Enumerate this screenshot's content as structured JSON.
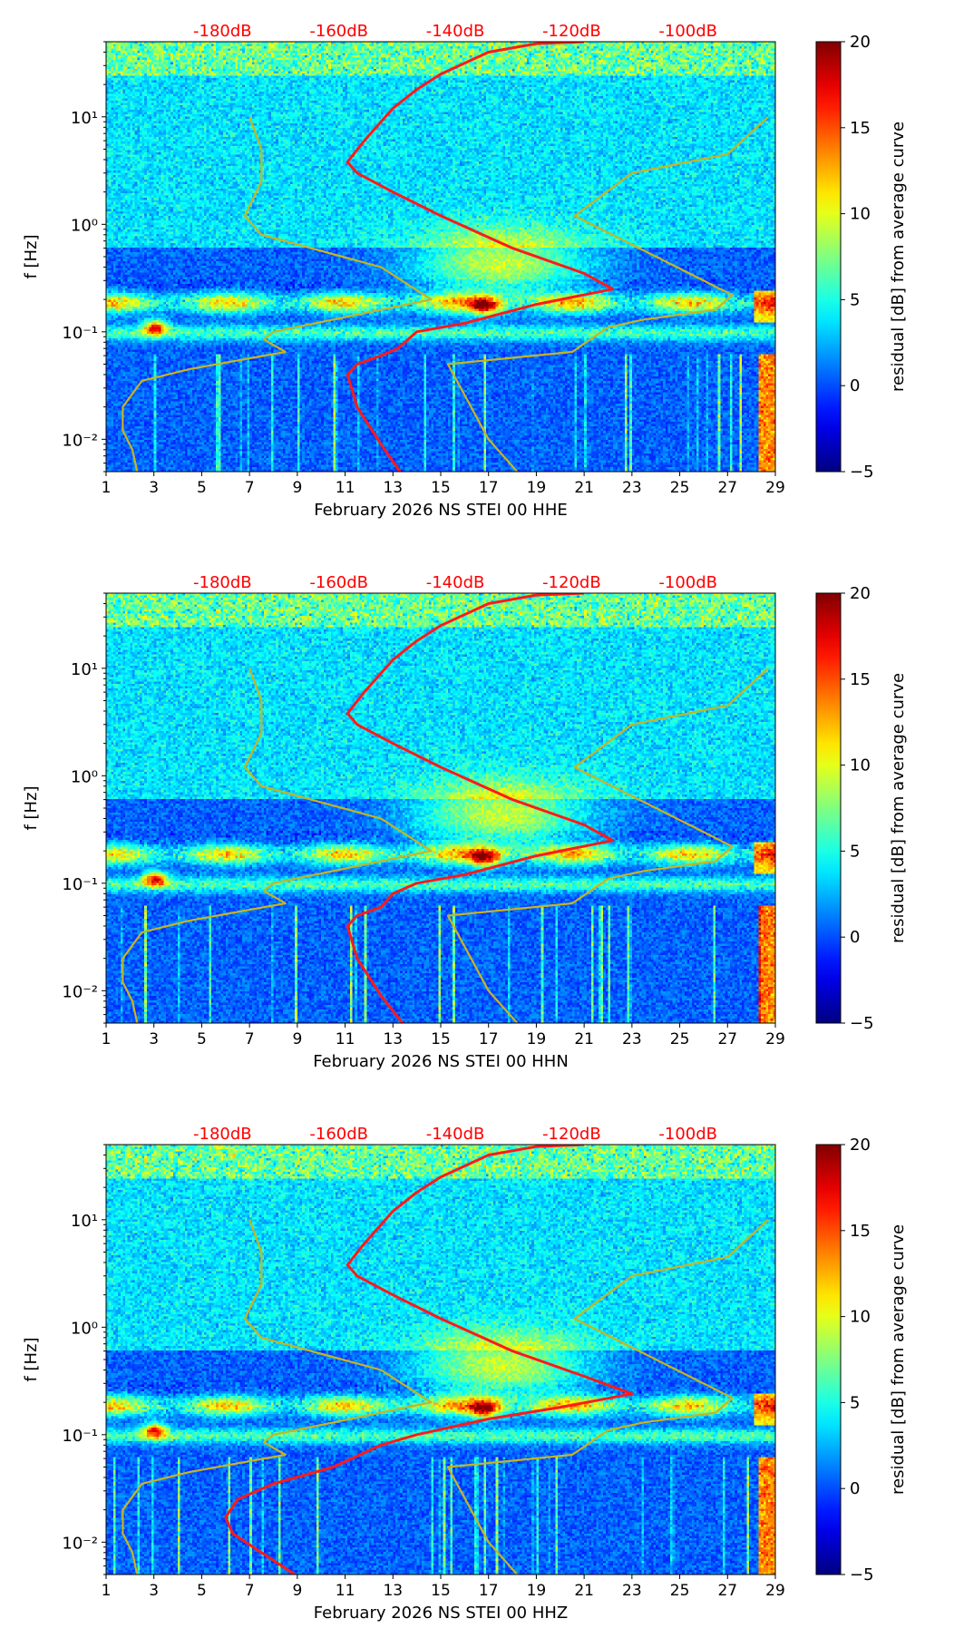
{
  "figure": {
    "colormap": "jet",
    "colorbar": {
      "label": "residual [dB] from average curve",
      "min": -5,
      "max": 20,
      "ticks": [
        -5,
        0,
        5,
        10,
        15,
        20
      ],
      "tick_labels": [
        "−5",
        "0",
        "5",
        "10",
        "15",
        "20"
      ]
    }
  },
  "chart_data": [
    {
      "type": "heatmap",
      "title": "",
      "xlabel": "February 2026 NS STEI 00 HHE",
      "ylabel": "f [Hz]",
      "xlim": [
        1,
        29
      ],
      "ylim": [
        0.005,
        50
      ],
      "yscale": "log",
      "x_ticks": [
        1,
        3,
        5,
        7,
        9,
        11,
        13,
        15,
        17,
        19,
        21,
        23,
        25,
        27,
        29
      ],
      "y_ticks": [
        0.01,
        0.1,
        1,
        10
      ],
      "y_tick_labels": [
        "10⁻²",
        "10⁻¹",
        "10⁰",
        "10¹"
      ],
      "top_axis": {
        "values": [
          -180,
          -160,
          -140,
          -120,
          -100
        ],
        "labels": [
          "-180dB",
          "-160dB",
          "-140dB",
          "-120dB",
          "-100dB"
        ],
        "color": "#ff0000"
      },
      "curves": [
        {
          "name": "median PSD (red)",
          "color": "#ff1a1a",
          "points": [
            [
              13.3,
              0.005
            ],
            [
              12.5,
              0.009
            ],
            [
              11.5,
              0.02
            ],
            [
              11.1,
              0.04
            ],
            [
              11.5,
              0.05
            ],
            [
              12.5,
              0.06
            ],
            [
              13.2,
              0.07
            ],
            [
              14,
              0.1
            ],
            [
              16,
              0.12
            ],
            [
              19,
              0.18
            ],
            [
              22.2,
              0.25
            ],
            [
              21,
              0.35
            ],
            [
              18,
              0.6
            ],
            [
              15,
              1.2
            ],
            [
              13,
              2
            ],
            [
              11.5,
              3
            ],
            [
              11.1,
              3.8
            ],
            [
              11.8,
              6
            ],
            [
              13,
              12
            ],
            [
              14,
              18
            ],
            [
              15,
              25
            ],
            [
              17,
              40
            ],
            [
              19,
              48
            ],
            [
              21,
              50
            ]
          ]
        },
        {
          "name": "noise model (yellow)",
          "color": "#c8b422",
          "points": [
            [
              2.3,
              0.005
            ],
            [
              2.1,
              0.008
            ],
            [
              1.7,
              0.012
            ],
            [
              1.7,
              0.02
            ],
            [
              2.5,
              0.035
            ],
            [
              4.5,
              0.045
            ],
            [
              8.5,
              0.065
            ],
            [
              7.6,
              0.085
            ],
            [
              8,
              0.1
            ],
            [
              14.6,
              0.2
            ],
            [
              12.5,
              0.4
            ],
            [
              7.5,
              0.8
            ],
            [
              6.8,
              1.2
            ],
            [
              7.5,
              2.5
            ],
            [
              7.5,
              5
            ],
            [
              7,
              10
            ]
          ]
        },
        {
          "name": "noise model (yellow)",
          "color": "#c8b422",
          "points": [
            [
              18.2,
              0.005
            ],
            [
              17,
              0.01
            ],
            [
              15.3,
              0.05
            ],
            [
              20.5,
              0.065
            ],
            [
              22,
              0.11
            ],
            [
              23.5,
              0.13
            ],
            [
              26.5,
              0.16
            ],
            [
              27.2,
              0.22
            ],
            [
              20.6,
              1.2
            ],
            [
              23,
              3
            ],
            [
              27,
              4.5
            ],
            [
              28.7,
              10
            ]
          ]
        }
      ]
    },
    {
      "type": "heatmap",
      "title": "",
      "xlabel": "February 2026 NS STEI 00 HHN",
      "ylabel": "f [Hz]",
      "xlim": [
        1,
        29
      ],
      "ylim": [
        0.005,
        50
      ],
      "yscale": "log",
      "x_ticks": [
        1,
        3,
        5,
        7,
        9,
        11,
        13,
        15,
        17,
        19,
        21,
        23,
        25,
        27,
        29
      ],
      "y_ticks": [
        0.01,
        0.1,
        1,
        10
      ],
      "y_tick_labels": [
        "10⁻²",
        "10⁻¹",
        "10⁰",
        "10¹"
      ],
      "top_axis": {
        "values": [
          -180,
          -160,
          -140,
          -120,
          -100
        ],
        "labels": [
          "-180dB",
          "-160dB",
          "-140dB",
          "-120dB",
          "-100dB"
        ],
        "color": "#ff0000"
      },
      "curves": [
        {
          "name": "median PSD (red)",
          "color": "#ff1a1a",
          "points": [
            [
              13.4,
              0.005
            ],
            [
              12.5,
              0.009
            ],
            [
              11.5,
              0.02
            ],
            [
              11.1,
              0.04
            ],
            [
              11.5,
              0.05
            ],
            [
              12.5,
              0.06
            ],
            [
              13,
              0.08
            ],
            [
              14,
              0.1
            ],
            [
              16,
              0.12
            ],
            [
              19,
              0.18
            ],
            [
              22.2,
              0.25
            ],
            [
              21,
              0.35
            ],
            [
              18,
              0.6
            ],
            [
              15,
              1.2
            ],
            [
              13,
              2
            ],
            [
              11.5,
              3
            ],
            [
              11.1,
              3.8
            ],
            [
              11.8,
              6
            ],
            [
              13,
              12
            ],
            [
              14,
              18
            ],
            [
              15,
              25
            ],
            [
              17,
              40
            ],
            [
              19,
              48
            ],
            [
              21,
              50
            ]
          ]
        },
        {
          "name": "noise model (yellow)",
          "color": "#c8b422",
          "points": [
            [
              2.3,
              0.005
            ],
            [
              2.1,
              0.008
            ],
            [
              1.7,
              0.012
            ],
            [
              1.7,
              0.02
            ],
            [
              2.5,
              0.035
            ],
            [
              4.5,
              0.045
            ],
            [
              8.5,
              0.065
            ],
            [
              7.6,
              0.085
            ],
            [
              8,
              0.1
            ],
            [
              14.6,
              0.2
            ],
            [
              12.5,
              0.4
            ],
            [
              7.5,
              0.8
            ],
            [
              6.8,
              1.2
            ],
            [
              7.5,
              2.5
            ],
            [
              7.5,
              5
            ],
            [
              7,
              10
            ]
          ]
        },
        {
          "name": "noise model (yellow)",
          "color": "#c8b422",
          "points": [
            [
              18.2,
              0.005
            ],
            [
              17,
              0.01
            ],
            [
              15.3,
              0.05
            ],
            [
              20.5,
              0.065
            ],
            [
              22,
              0.11
            ],
            [
              23.5,
              0.13
            ],
            [
              26.5,
              0.16
            ],
            [
              27.2,
              0.22
            ],
            [
              20.6,
              1.2
            ],
            [
              23,
              3
            ],
            [
              27,
              4.5
            ],
            [
              28.7,
              10
            ]
          ]
        }
      ]
    },
    {
      "type": "heatmap",
      "title": "",
      "xlabel": "February 2026 NS STEI 00 HHZ",
      "ylabel": "f [Hz]",
      "xlim": [
        1,
        29
      ],
      "ylim": [
        0.005,
        50
      ],
      "yscale": "log",
      "x_ticks": [
        1,
        3,
        5,
        7,
        9,
        11,
        13,
        15,
        17,
        19,
        21,
        23,
        25,
        27,
        29
      ],
      "y_ticks": [
        0.01,
        0.1,
        1,
        10
      ],
      "y_tick_labels": [
        "10⁻²",
        "10⁻¹",
        "10⁰",
        "10¹"
      ],
      "top_axis": {
        "values": [
          -180,
          -160,
          -140,
          -120,
          -100
        ],
        "labels": [
          "-180dB",
          "-160dB",
          "-140dB",
          "-120dB",
          "-100dB"
        ],
        "color": "#ff0000"
      },
      "curves": [
        {
          "name": "median PSD (red)",
          "color": "#ff1a1a",
          "points": [
            [
              8.9,
              0.005
            ],
            [
              7.5,
              0.008
            ],
            [
              6.3,
              0.012
            ],
            [
              6,
              0.017
            ],
            [
              6.5,
              0.025
            ],
            [
              8,
              0.035
            ],
            [
              10.5,
              0.05
            ],
            [
              12.5,
              0.08
            ],
            [
              14,
              0.1
            ],
            [
              17,
              0.14
            ],
            [
              20,
              0.18
            ],
            [
              23,
              0.24
            ],
            [
              21,
              0.35
            ],
            [
              18,
              0.6
            ],
            [
              15,
              1.2
            ],
            [
              13,
              2
            ],
            [
              11.5,
              3
            ],
            [
              11.1,
              3.8
            ],
            [
              11.8,
              6
            ],
            [
              13,
              12
            ],
            [
              14,
              18
            ],
            [
              15,
              25
            ],
            [
              17,
              40
            ],
            [
              19,
              48
            ],
            [
              21,
              50
            ]
          ]
        },
        {
          "name": "noise model (yellow)",
          "color": "#c8b422",
          "points": [
            [
              2.3,
              0.005
            ],
            [
              2.1,
              0.008
            ],
            [
              1.7,
              0.012
            ],
            [
              1.7,
              0.02
            ],
            [
              2.5,
              0.035
            ],
            [
              4.5,
              0.045
            ],
            [
              8.5,
              0.065
            ],
            [
              7.6,
              0.085
            ],
            [
              8,
              0.1
            ],
            [
              14.6,
              0.2
            ],
            [
              12.5,
              0.4
            ],
            [
              7.5,
              0.8
            ],
            [
              6.8,
              1.2
            ],
            [
              7.5,
              2.5
            ],
            [
              7.5,
              5
            ],
            [
              7,
              10
            ]
          ]
        },
        {
          "name": "noise model (yellow)",
          "color": "#c8b422",
          "points": [
            [
              18.2,
              0.005
            ],
            [
              17,
              0.01
            ],
            [
              15.3,
              0.05
            ],
            [
              20.5,
              0.065
            ],
            [
              22,
              0.11
            ],
            [
              23.5,
              0.13
            ],
            [
              26.5,
              0.16
            ],
            [
              27.2,
              0.22
            ],
            [
              20.6,
              1.2
            ],
            [
              23,
              3
            ],
            [
              27,
              4.5
            ],
            [
              28.7,
              10
            ]
          ]
        }
      ]
    }
  ]
}
